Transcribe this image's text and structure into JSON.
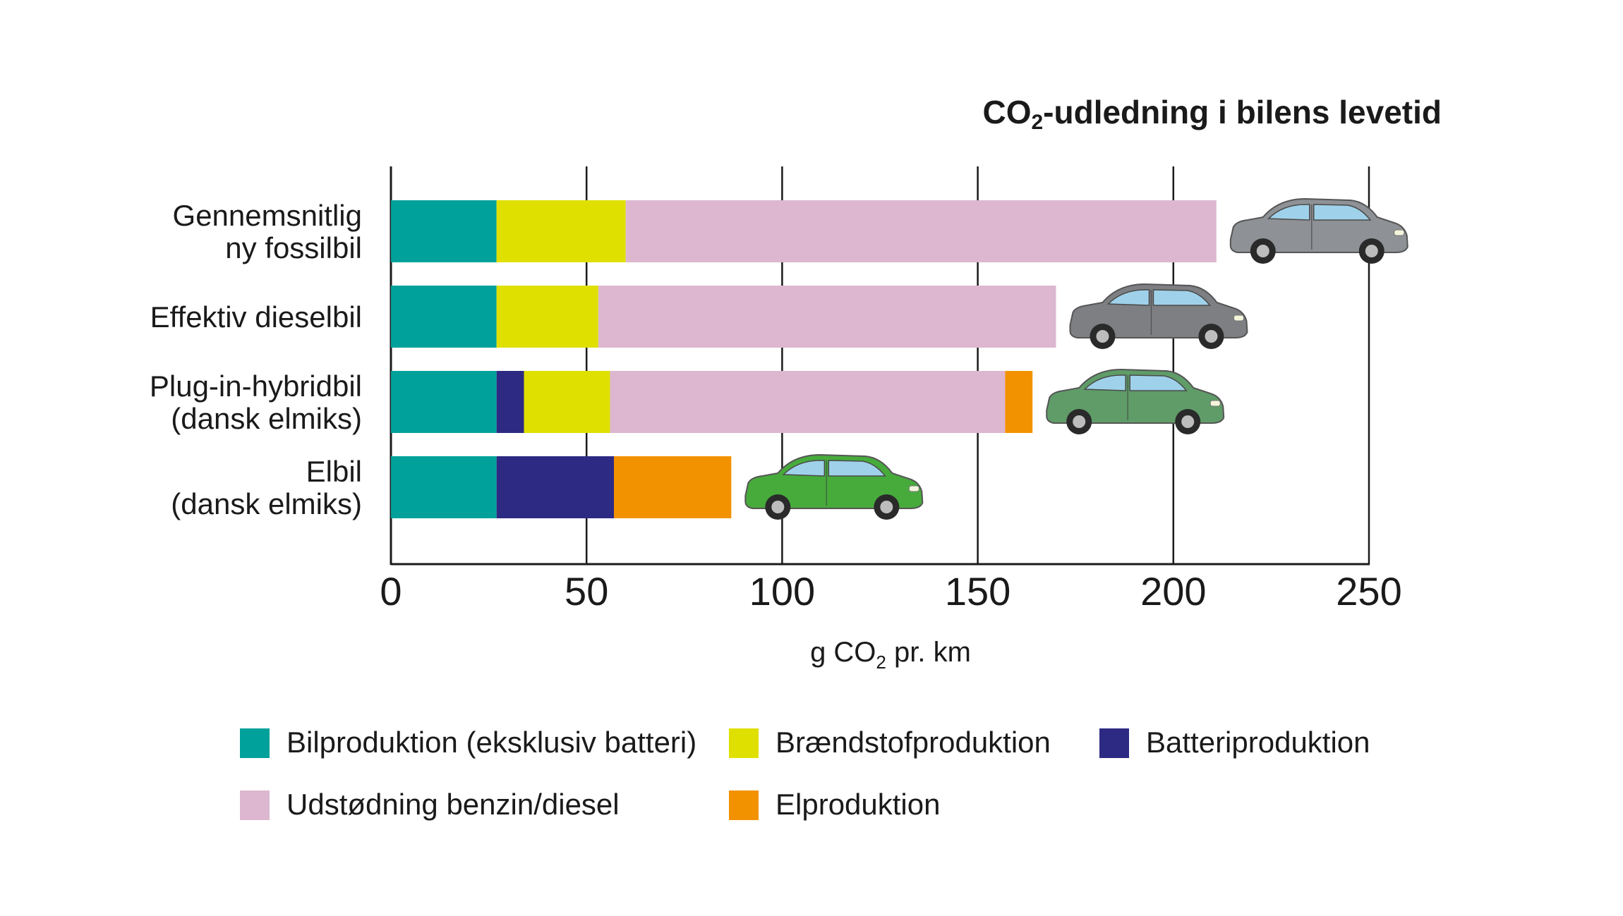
{
  "chart_data": {
    "type": "bar",
    "orientation": "horizontal",
    "stacked": true,
    "title_main": "CO",
    "title_sub": "2",
    "title_rest": "-udledning i bilens levetid",
    "xlabel_main": "g CO",
    "xlabel_sub": "2",
    "xlabel_rest": " pr. km",
    "xlim": [
      0,
      250
    ],
    "xticks": [
      0,
      50,
      100,
      150,
      200,
      250
    ],
    "grid": true,
    "legend_position": "bottom",
    "categories": [
      {
        "lines": [
          "Gennemsnitlig",
          "ny fossilbil"
        ],
        "car_color": "#8e9195"
      },
      {
        "lines": [
          "Effektiv dieselbil"
        ],
        "car_color": "#7d7f83"
      },
      {
        "lines": [
          "Plug-in-hybridbil",
          "(dansk elmiks)"
        ],
        "car_color": "#5f9c68"
      },
      {
        "lines": [
          "Elbil",
          "(dansk elmiks)"
        ],
        "car_color": "#47ab3c"
      }
    ],
    "series": [
      {
        "name": "Bilproduktion (eksklusiv batteri)",
        "color": "#00a19a",
        "values": [
          27,
          27,
          27,
          27
        ]
      },
      {
        "name": "Batteriproduktion",
        "color": "#2d2a83",
        "values": [
          0,
          0,
          7,
          30
        ]
      },
      {
        "name": "Brændstofproduktion",
        "color": "#dfe000",
        "values": [
          33,
          26,
          22,
          0
        ]
      },
      {
        "name": "Udstødning benzin/diesel",
        "color": "#dcb7cf",
        "values": [
          151,
          117,
          101,
          0
        ]
      },
      {
        "name": "Elproduktion",
        "color": "#f39200",
        "values": [
          0,
          0,
          7,
          30
        ]
      }
    ],
    "legend_order": [
      "Bilproduktion (eksklusiv batteri)",
      "Brændstofproduktion",
      "Batteriproduktion",
      "Udstødning benzin/diesel",
      "Elproduktion"
    ]
  }
}
